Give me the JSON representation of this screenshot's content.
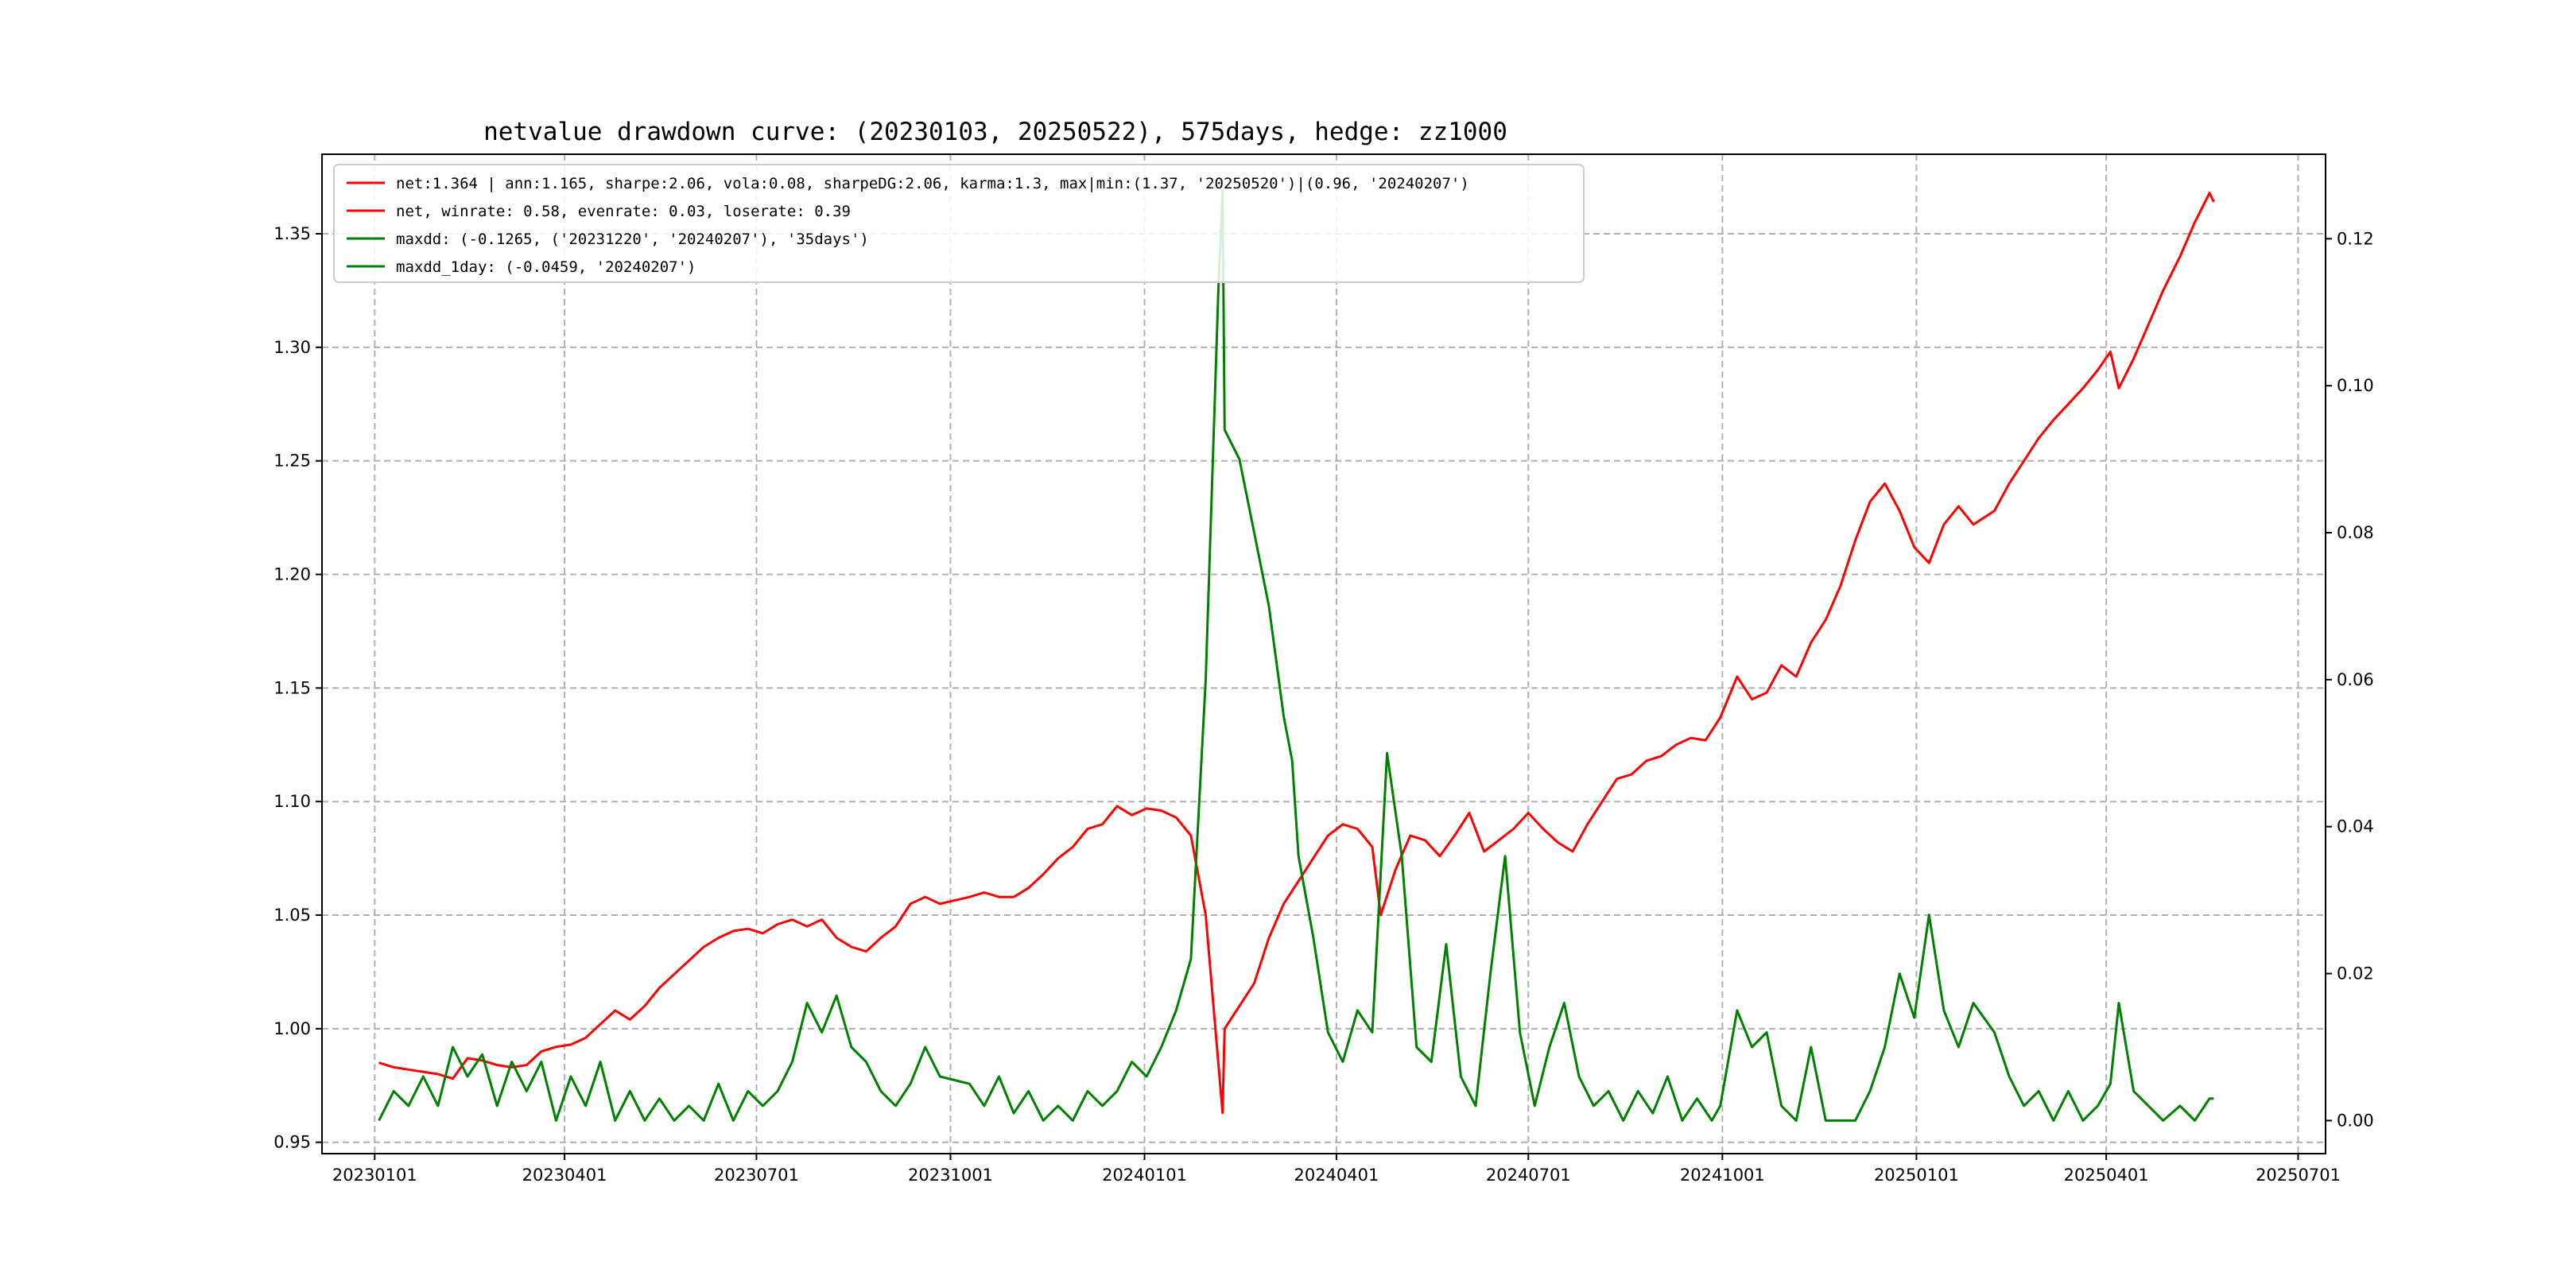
{
  "chart_data": {
    "type": "line",
    "title": "netvalue drawdown curve: (20230103, 20250522), 575days, hedge: zz1000",
    "xlabel": "",
    "ylabel": "",
    "y2label": "",
    "x_ticks": [
      "20230101",
      "20230401",
      "20230701",
      "20231001",
      "20240101",
      "20240401",
      "20240701",
      "20241001",
      "20250101",
      "20250401",
      "20250701"
    ],
    "y_ticks": [
      "0.95",
      "1.00",
      "1.05",
      "1.10",
      "1.15",
      "1.20",
      "1.25",
      "1.30",
      "1.35"
    ],
    "y2_ticks": [
      "0.00",
      "0.02",
      "0.04",
      "0.06",
      "0.08",
      "0.10",
      "0.12"
    ],
    "xlim": [
      "2022-12-07",
      "2025-07-14"
    ],
    "ylim": [
      0.945,
      1.385
    ],
    "y2lim": [
      -0.0045,
      0.1315
    ],
    "grid": true,
    "legend_position": "top-left",
    "legend": [
      {
        "label": "net:1.364 | ann:1.165, sharpe:2.06, vola:0.08, sharpeDG:2.06, karma:1.3, max|min:(1.37, '20250520')|(0.96, '20240207')",
        "color": "#ff0000"
      },
      {
        "label": "net, winrate: 0.58, evenrate: 0.03, loserate: 0.39",
        "color": "#ff0000"
      },
      {
        "label": "maxdd: (-0.1265, ('20231220', '20240207'), '35days')",
        "color": "#008000"
      },
      {
        "label": "maxdd_1day: (-0.0459, '20240207')",
        "color": "#008000"
      }
    ],
    "series": [
      {
        "axis": "left",
        "color": "#ff0000",
        "points": [
          [
            "2023-01-03",
            0.985
          ],
          [
            "2023-01-10",
            0.983
          ],
          [
            "2023-01-17",
            0.982
          ],
          [
            "2023-01-31",
            0.98
          ],
          [
            "2023-02-07",
            0.978
          ],
          [
            "2023-02-14",
            0.987
          ],
          [
            "2023-02-21",
            0.986
          ],
          [
            "2023-02-28",
            0.984
          ],
          [
            "2023-03-07",
            0.983
          ],
          [
            "2023-03-14",
            0.984
          ],
          [
            "2023-03-21",
            0.99
          ],
          [
            "2023-03-28",
            0.992
          ],
          [
            "2023-04-04",
            0.993
          ],
          [
            "2023-04-11",
            0.996
          ],
          [
            "2023-04-18",
            1.002
          ],
          [
            "2023-04-25",
            1.008
          ],
          [
            "2023-05-02",
            1.004
          ],
          [
            "2023-05-09",
            1.01
          ],
          [
            "2023-05-16",
            1.018
          ],
          [
            "2023-05-23",
            1.024
          ],
          [
            "2023-05-30",
            1.03
          ],
          [
            "2023-06-06",
            1.036
          ],
          [
            "2023-06-13",
            1.04
          ],
          [
            "2023-06-20",
            1.043
          ],
          [
            "2023-06-27",
            1.044
          ],
          [
            "2023-07-04",
            1.042
          ],
          [
            "2023-07-11",
            1.046
          ],
          [
            "2023-07-18",
            1.048
          ],
          [
            "2023-07-25",
            1.045
          ],
          [
            "2023-08-01",
            1.048
          ],
          [
            "2023-08-08",
            1.04
          ],
          [
            "2023-08-15",
            1.036
          ],
          [
            "2023-08-22",
            1.034
          ],
          [
            "2023-08-29",
            1.04
          ],
          [
            "2023-09-05",
            1.045
          ],
          [
            "2023-09-12",
            1.055
          ],
          [
            "2023-09-19",
            1.058
          ],
          [
            "2023-09-26",
            1.055
          ],
          [
            "2023-10-10",
            1.058
          ],
          [
            "2023-10-17",
            1.06
          ],
          [
            "2023-10-24",
            1.058
          ],
          [
            "2023-10-31",
            1.058
          ],
          [
            "2023-11-07",
            1.062
          ],
          [
            "2023-11-14",
            1.068
          ],
          [
            "2023-11-21",
            1.075
          ],
          [
            "2023-11-28",
            1.08
          ],
          [
            "2023-12-05",
            1.088
          ],
          [
            "2023-12-12",
            1.09
          ],
          [
            "2023-12-19",
            1.098
          ],
          [
            "2023-12-26",
            1.094
          ],
          [
            "2024-01-02",
            1.097
          ],
          [
            "2024-01-09",
            1.096
          ],
          [
            "2024-01-16",
            1.093
          ],
          [
            "2024-01-23",
            1.085
          ],
          [
            "2024-01-30",
            1.05
          ],
          [
            "2024-02-07",
            0.963
          ],
          [
            "2024-02-08",
            1.0
          ],
          [
            "2024-02-22",
            1.02
          ],
          [
            "2024-02-29",
            1.04
          ],
          [
            "2024-03-07",
            1.055
          ],
          [
            "2024-03-14",
            1.065
          ],
          [
            "2024-03-21",
            1.075
          ],
          [
            "2024-03-28",
            1.085
          ],
          [
            "2024-04-04",
            1.09
          ],
          [
            "2024-04-11",
            1.088
          ],
          [
            "2024-04-18",
            1.08
          ],
          [
            "2024-04-22",
            1.05
          ],
          [
            "2024-04-29",
            1.07
          ],
          [
            "2024-05-06",
            1.085
          ],
          [
            "2024-05-13",
            1.083
          ],
          [
            "2024-05-20",
            1.076
          ],
          [
            "2024-05-27",
            1.085
          ],
          [
            "2024-06-03",
            1.095
          ],
          [
            "2024-06-10",
            1.078
          ],
          [
            "2024-06-17",
            1.083
          ],
          [
            "2024-06-24",
            1.088
          ],
          [
            "2024-07-01",
            1.095
          ],
          [
            "2024-07-08",
            1.088
          ],
          [
            "2024-07-15",
            1.082
          ],
          [
            "2024-07-22",
            1.078
          ],
          [
            "2024-07-29",
            1.09
          ],
          [
            "2024-08-05",
            1.1
          ],
          [
            "2024-08-12",
            1.11
          ],
          [
            "2024-08-19",
            1.112
          ],
          [
            "2024-08-26",
            1.118
          ],
          [
            "2024-09-02",
            1.12
          ],
          [
            "2024-09-09",
            1.125
          ],
          [
            "2024-09-16",
            1.128
          ],
          [
            "2024-09-23",
            1.127
          ],
          [
            "2024-09-30",
            1.137
          ],
          [
            "2024-10-08",
            1.155
          ],
          [
            "2024-10-15",
            1.145
          ],
          [
            "2024-10-22",
            1.148
          ],
          [
            "2024-10-29",
            1.16
          ],
          [
            "2024-11-05",
            1.155
          ],
          [
            "2024-11-12",
            1.17
          ],
          [
            "2024-11-19",
            1.18
          ],
          [
            "2024-11-26",
            1.195
          ],
          [
            "2024-12-03",
            1.215
          ],
          [
            "2024-12-10",
            1.232
          ],
          [
            "2024-12-17",
            1.24
          ],
          [
            "2024-12-24",
            1.228
          ],
          [
            "2024-12-31",
            1.212
          ],
          [
            "2025-01-07",
            1.205
          ],
          [
            "2025-01-14",
            1.222
          ],
          [
            "2025-01-21",
            1.23
          ],
          [
            "2025-01-28",
            1.222
          ],
          [
            "2025-02-07",
            1.228
          ],
          [
            "2025-02-14",
            1.24
          ],
          [
            "2025-02-21",
            1.25
          ],
          [
            "2025-02-28",
            1.26
          ],
          [
            "2025-03-07",
            1.268
          ],
          [
            "2025-03-14",
            1.275
          ],
          [
            "2025-03-21",
            1.282
          ],
          [
            "2025-03-28",
            1.29
          ],
          [
            "2025-04-03",
            1.298
          ],
          [
            "2025-04-07",
            1.282
          ],
          [
            "2025-04-14",
            1.295
          ],
          [
            "2025-04-21",
            1.31
          ],
          [
            "2025-04-28",
            1.325
          ],
          [
            "2025-05-06",
            1.34
          ],
          [
            "2025-05-13",
            1.355
          ],
          [
            "2025-05-20",
            1.368
          ],
          [
            "2025-05-22",
            1.364
          ]
        ]
      },
      {
        "axis": "right",
        "color": "#008000",
        "points": [
          [
            "2023-01-03",
            0.0
          ],
          [
            "2023-01-10",
            0.004
          ],
          [
            "2023-01-17",
            0.002
          ],
          [
            "2023-01-24",
            0.006
          ],
          [
            "2023-01-31",
            0.002
          ],
          [
            "2023-02-07",
            0.01
          ],
          [
            "2023-02-14",
            0.006
          ],
          [
            "2023-02-21",
            0.009
          ],
          [
            "2023-02-28",
            0.002
          ],
          [
            "2023-03-07",
            0.008
          ],
          [
            "2023-03-14",
            0.004
          ],
          [
            "2023-03-21",
            0.008
          ],
          [
            "2023-03-28",
            0.0
          ],
          [
            "2023-04-04",
            0.006
          ],
          [
            "2023-04-11",
            0.002
          ],
          [
            "2023-04-18",
            0.008
          ],
          [
            "2023-04-25",
            0.0
          ],
          [
            "2023-05-02",
            0.004
          ],
          [
            "2023-05-09",
            0.0
          ],
          [
            "2023-05-16",
            0.003
          ],
          [
            "2023-05-23",
            0.0
          ],
          [
            "2023-05-30",
            0.002
          ],
          [
            "2023-06-06",
            0.0
          ],
          [
            "2023-06-13",
            0.005
          ],
          [
            "2023-06-20",
            0.0
          ],
          [
            "2023-06-27",
            0.004
          ],
          [
            "2023-07-04",
            0.002
          ],
          [
            "2023-07-11",
            0.004
          ],
          [
            "2023-07-18",
            0.008
          ],
          [
            "2023-07-25",
            0.016
          ],
          [
            "2023-08-01",
            0.012
          ],
          [
            "2023-08-08",
            0.017
          ],
          [
            "2023-08-15",
            0.01
          ],
          [
            "2023-08-22",
            0.008
          ],
          [
            "2023-08-29",
            0.004
          ],
          [
            "2023-09-05",
            0.002
          ],
          [
            "2023-09-12",
            0.005
          ],
          [
            "2023-09-19",
            0.01
          ],
          [
            "2023-09-26",
            0.006
          ],
          [
            "2023-10-10",
            0.005
          ],
          [
            "2023-10-17",
            0.002
          ],
          [
            "2023-10-24",
            0.006
          ],
          [
            "2023-10-31",
            0.001
          ],
          [
            "2023-11-07",
            0.004
          ],
          [
            "2023-11-14",
            0.0
          ],
          [
            "2023-11-21",
            0.002
          ],
          [
            "2023-11-28",
            0.0
          ],
          [
            "2023-12-05",
            0.004
          ],
          [
            "2023-12-12",
            0.002
          ],
          [
            "2023-12-19",
            0.004
          ],
          [
            "2023-12-26",
            0.008
          ],
          [
            "2024-01-02",
            0.006
          ],
          [
            "2024-01-09",
            0.01
          ],
          [
            "2024-01-16",
            0.015
          ],
          [
            "2024-01-23",
            0.022
          ],
          [
            "2024-01-30",
            0.06
          ],
          [
            "2024-02-05",
            0.113
          ],
          [
            "2024-02-07",
            0.1265
          ],
          [
            "2024-02-08",
            0.094
          ],
          [
            "2024-02-15",
            0.09
          ],
          [
            "2024-02-22",
            0.08
          ],
          [
            "2024-02-29",
            0.07
          ],
          [
            "2024-03-07",
            0.055
          ],
          [
            "2024-03-11",
            0.049
          ],
          [
            "2024-03-14",
            0.036
          ],
          [
            "2024-03-21",
            0.025
          ],
          [
            "2024-03-28",
            0.012
          ],
          [
            "2024-04-04",
            0.008
          ],
          [
            "2024-04-11",
            0.015
          ],
          [
            "2024-04-18",
            0.012
          ],
          [
            "2024-04-25",
            0.05
          ],
          [
            "2024-05-02",
            0.036
          ],
          [
            "2024-05-09",
            0.01
          ],
          [
            "2024-05-16",
            0.008
          ],
          [
            "2024-05-23",
            0.024
          ],
          [
            "2024-05-30",
            0.006
          ],
          [
            "2024-06-06",
            0.002
          ],
          [
            "2024-06-13",
            0.02
          ],
          [
            "2024-06-20",
            0.036
          ],
          [
            "2024-06-27",
            0.012
          ],
          [
            "2024-07-04",
            0.002
          ],
          [
            "2024-07-11",
            0.01
          ],
          [
            "2024-07-18",
            0.016
          ],
          [
            "2024-07-25",
            0.006
          ],
          [
            "2024-08-01",
            0.002
          ],
          [
            "2024-08-08",
            0.004
          ],
          [
            "2024-08-15",
            0.0
          ],
          [
            "2024-08-22",
            0.004
          ],
          [
            "2024-08-29",
            0.001
          ],
          [
            "2024-09-05",
            0.006
          ],
          [
            "2024-09-12",
            0.0
          ],
          [
            "2024-09-19",
            0.003
          ],
          [
            "2024-09-26",
            0.0
          ],
          [
            "2024-09-30",
            0.002
          ],
          [
            "2024-10-08",
            0.015
          ],
          [
            "2024-10-15",
            0.01
          ],
          [
            "2024-10-22",
            0.012
          ],
          [
            "2024-10-29",
            0.002
          ],
          [
            "2024-11-05",
            0.0
          ],
          [
            "2024-11-12",
            0.01
          ],
          [
            "2024-11-19",
            0.0
          ],
          [
            "2024-11-26",
            0.0
          ],
          [
            "2024-12-03",
            0.0
          ],
          [
            "2024-12-10",
            0.004
          ],
          [
            "2024-12-17",
            0.01
          ],
          [
            "2024-12-24",
            0.02
          ],
          [
            "2024-12-31",
            0.014
          ],
          [
            "2025-01-07",
            0.028
          ],
          [
            "2025-01-14",
            0.015
          ],
          [
            "2025-01-21",
            0.01
          ],
          [
            "2025-01-28",
            0.016
          ],
          [
            "2025-02-07",
            0.012
          ],
          [
            "2025-02-14",
            0.006
          ],
          [
            "2025-02-21",
            0.002
          ],
          [
            "2025-02-28",
            0.004
          ],
          [
            "2025-03-07",
            0.0
          ],
          [
            "2025-03-14",
            0.004
          ],
          [
            "2025-03-21",
            0.0
          ],
          [
            "2025-03-28",
            0.002
          ],
          [
            "2025-04-03",
            0.005
          ],
          [
            "2025-04-07",
            0.016
          ],
          [
            "2025-04-14",
            0.004
          ],
          [
            "2025-04-21",
            0.002
          ],
          [
            "2025-04-28",
            0.0
          ],
          [
            "2025-05-06",
            0.002
          ],
          [
            "2025-05-13",
            0.0
          ],
          [
            "2025-05-20",
            0.003
          ],
          [
            "2025-05-22",
            0.003
          ]
        ]
      }
    ]
  }
}
